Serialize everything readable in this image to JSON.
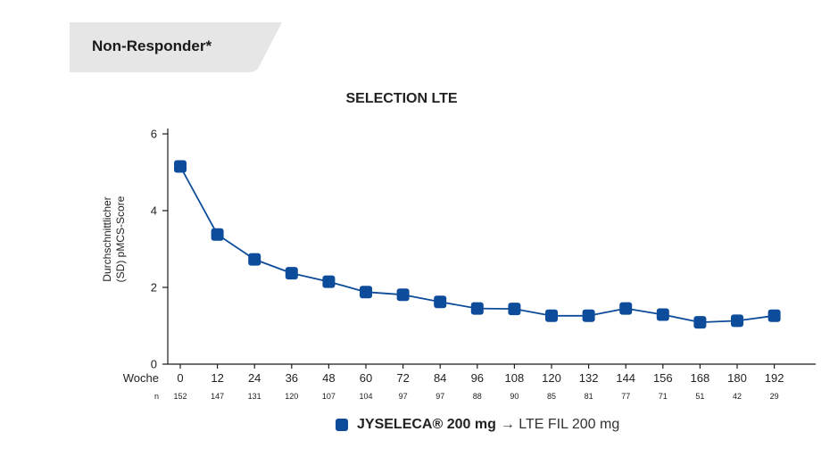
{
  "header": {
    "label": "Non-Responder*"
  },
  "colors": {
    "tab_bg": "#e6e6e6",
    "series": "#0d4c9a",
    "axis": "#1a1a1a"
  },
  "legend": {
    "drug": "JYSELECA® 200 mg",
    "rest": "→ LTE FIL 200 mg"
  },
  "chart_data": {
    "type": "line",
    "title": "SELECTION LTE",
    "ylabel_line1": "Durchschnittlicher",
    "ylabel_line2": "(SD) pMCS-Score",
    "xlabel": "Woche",
    "n_label": "n",
    "ylim": [
      0,
      6
    ],
    "yticks": [
      0,
      2,
      4,
      6
    ],
    "x": [
      0,
      12,
      24,
      36,
      48,
      60,
      72,
      84,
      96,
      108,
      120,
      132,
      144,
      156,
      168,
      180,
      192
    ],
    "n": [
      152,
      147,
      131,
      120,
      107,
      104,
      97,
      97,
      88,
      90,
      85,
      81,
      77,
      71,
      51,
      42,
      29
    ],
    "series": [
      {
        "name": "JYSELECA® 200 mg → LTE FIL 200 mg",
        "values": [
          5.15,
          3.38,
          2.73,
          2.37,
          2.15,
          1.88,
          1.81,
          1.62,
          1.45,
          1.44,
          1.26,
          1.26,
          1.45,
          1.29,
          1.09,
          1.13,
          1.26
        ]
      }
    ],
    "grid": false,
    "legend_position": "bottom"
  }
}
